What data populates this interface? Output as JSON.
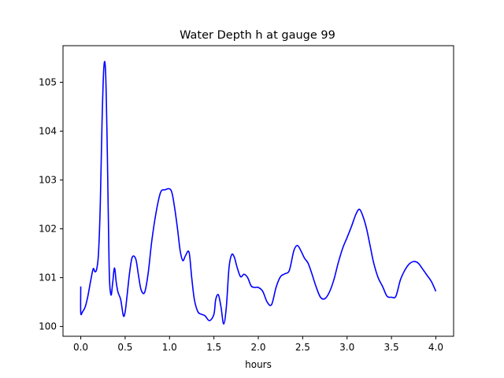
{
  "chart_data": {
    "type": "line",
    "title": "Water Depth h at gauge 99",
    "xlabel": "hours",
    "ylabel": "",
    "xlim": [
      -0.2,
      4.2
    ],
    "ylim": [
      99.8,
      105.75
    ],
    "xticks": [
      0.0,
      0.5,
      1.0,
      1.5,
      2.0,
      2.5,
      3.0,
      3.5,
      4.0
    ],
    "xtick_labels": [
      "0.0",
      "0.5",
      "1.0",
      "1.5",
      "2.0",
      "2.5",
      "3.0",
      "3.5",
      "4.0"
    ],
    "yticks": [
      100,
      101,
      102,
      103,
      104,
      105
    ],
    "ytick_labels": [
      "100",
      "101",
      "102",
      "103",
      "104",
      "105"
    ],
    "grid": false,
    "series": [
      {
        "color": "#0000ff",
        "x": [
          0.0,
          0.0,
          0.02,
          0.05,
          0.08,
          0.11,
          0.14,
          0.16,
          0.18,
          0.2,
          0.22,
          0.24,
          0.26,
          0.28,
          0.3,
          0.32,
          0.34,
          0.36,
          0.38,
          0.4,
          0.42,
          0.45,
          0.48,
          0.5,
          0.52,
          0.55,
          0.58,
          0.62,
          0.65,
          0.68,
          0.72,
          0.76,
          0.8,
          0.85,
          0.9,
          0.95,
          1.0,
          1.03,
          1.06,
          1.09,
          1.12,
          1.15,
          1.18,
          1.22,
          1.25,
          1.28,
          1.32,
          1.36,
          1.4,
          1.45,
          1.5,
          1.52,
          1.55,
          1.58,
          1.61,
          1.64,
          1.67,
          1.7,
          1.73,
          1.76,
          1.8,
          1.84,
          1.88,
          1.92,
          1.96,
          2.0,
          2.05,
          2.1,
          2.15,
          2.2,
          2.25,
          2.3,
          2.35,
          2.4,
          2.44,
          2.48,
          2.52,
          2.56,
          2.6,
          2.65,
          2.7,
          2.75,
          2.8,
          2.85,
          2.9,
          2.95,
          3.0,
          3.05,
          3.1,
          3.14,
          3.18,
          3.22,
          3.26,
          3.3,
          3.35,
          3.4,
          3.45,
          3.5,
          3.55,
          3.6,
          3.65,
          3.7,
          3.75,
          3.8,
          3.85,
          3.9,
          3.95,
          4.0
        ],
        "y": [
          100.82,
          100.28,
          100.3,
          100.4,
          100.62,
          100.92,
          101.18,
          101.12,
          101.18,
          101.5,
          102.5,
          104.2,
          105.3,
          105.2,
          103.5,
          101.2,
          100.65,
          100.9,
          101.2,
          100.9,
          100.7,
          100.55,
          100.22,
          100.3,
          100.6,
          101.1,
          101.42,
          101.38,
          101.05,
          100.75,
          100.7,
          101.1,
          101.75,
          102.35,
          102.75,
          102.8,
          102.82,
          102.72,
          102.4,
          102.0,
          101.55,
          101.35,
          101.45,
          101.52,
          101.0,
          100.55,
          100.3,
          100.25,
          100.22,
          100.12,
          100.25,
          100.55,
          100.65,
          100.4,
          100.05,
          100.4,
          101.2,
          101.47,
          101.42,
          101.22,
          101.02,
          101.07,
          101.0,
          100.83,
          100.8,
          100.8,
          100.72,
          100.5,
          100.45,
          100.8,
          101.02,
          101.08,
          101.15,
          101.55,
          101.66,
          101.55,
          101.4,
          101.3,
          101.1,
          100.82,
          100.6,
          100.57,
          100.7,
          100.95,
          101.3,
          101.6,
          101.82,
          102.05,
          102.3,
          102.4,
          102.25,
          102.0,
          101.65,
          101.3,
          101.0,
          100.82,
          100.62,
          100.6,
          100.62,
          100.95,
          101.15,
          101.28,
          101.33,
          101.3,
          101.18,
          101.05,
          100.92,
          100.72
        ]
      }
    ]
  }
}
